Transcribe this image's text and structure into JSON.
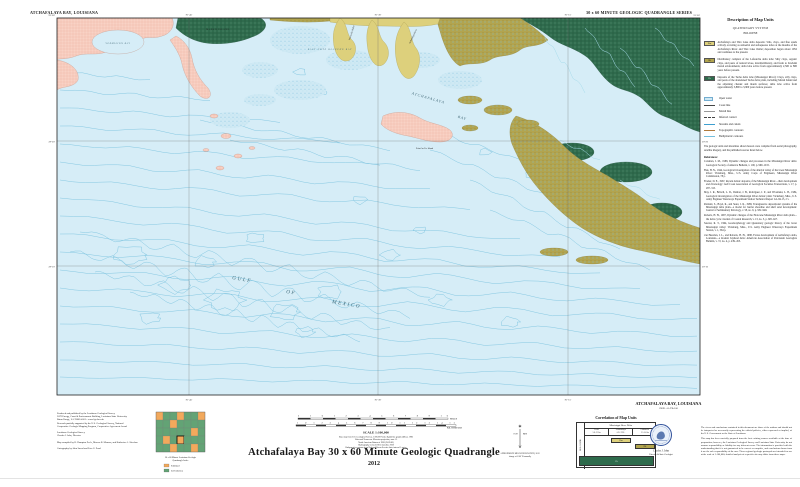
{
  "sheet": {
    "top_left_header": "ATCHAFALAYA BAY, LOUISIANA",
    "top_right_header": "30 x 60 MINUTE  GEOLOGIC QUADRANGLE SERIES",
    "bottom_right_header": "ATCHAFALAYA BAY, LOUISIANA",
    "bottom_right_id": "29091-A1-TB-100"
  },
  "colors": {
    "water": "#d6edf7",
    "bathymetric_contour": "#7cc3df",
    "marsh_pink": "#f7cdbf",
    "teche_green": "#2f6b4d",
    "lafourche_olive": "#b2a44f",
    "atchafalaya_yellow": "#ddd07c"
  },
  "map": {
    "labels": {
      "marsh_island": "MARSH ISLAND",
      "east_cote_blanche_bay": "EAST COTE BLANCHE BAY",
      "vermilion_bay": "VERMILION BAY",
      "atchafalaya_word": "ATCHAFALAYA",
      "bay_word": "BAY",
      "gulf": "GULF",
      "of": "OF",
      "mexico": "MEXICO",
      "point_au_fer": "Point Au Fer Island",
      "wax_lake_outlet": "Wax Lake Outlet",
      "atchafalaya_river": "Atchafalaya River"
    },
    "edge": {
      "corner_nw": "92°00′",
      "corner_ne": "91°00′",
      "top_ticks": [
        "91°45′",
        "91°30′",
        "91°15′"
      ],
      "lat_ticks": [
        "29°20′",
        "29°10′"
      ]
    }
  },
  "description_panel": {
    "title": "Description of Map Units",
    "system": "QUATERNARY SYSTEM",
    "series": "HOLOCENE",
    "units": [
      {
        "code": "Haa",
        "text": "Atchafalaya and Wax Lake delta deposits: Silts, clays, and fine sands actively accreting as subaerial and subaqueous lobes at the mouths of the Atchafalaya River and Wax Lake Outlet; deposition began about 1952 and continues to the present."
      },
      {
        "code": "Hlf",
        "text": "Distributary complex of the Lafourche delta lobe: Silty clays, organic clays, and peats of natural levee, interdistributary, and fresh to brackish marsh environments; delta lobe active from approximately 2,500 to 800 years before present."
      },
      {
        "code": "Ht",
        "text": "Deposits of the Teche delta lobe (Mississippi River): Clays, silty clays, and peats of the abandoned Teche delta plain, including Marsh Island and the adjoining chenier and marsh surfaces; delta lobe active from approximately 5,800 to 3,900 years before present."
      }
    ],
    "symbols": [
      {
        "label": "Open water"
      },
      {
        "label": "Coast line"
      },
      {
        "label": "Marsh line"
      },
      {
        "label": "Inferred contact"
      },
      {
        "label": "Streams and canals"
      },
      {
        "label": "Topographic contours"
      },
      {
        "label": "Bathymetric contours"
      }
    ],
    "note": "The geologic units and shorelines shown hereon were compiled from aerial photography, satellite imagery, and the published sources listed below.",
    "references_title": "References:",
    "references": [
      "Coleman, J. M., 1988, Dynamic changes and processes in the Mississippi River delta: Geological Society of America Bulletin, v. 100, p. 999–1015.",
      "Fisk, H. N., 1944, Geological investigation of the alluvial valley of the lower Mississippi River: Vicksburg, Miss., U.S. Army Corps of Engineers, Mississippi River Commission, 78 p.",
      "Frazier, D. E., 1967, Recent deltaic deposits of the Mississippi River—their development and chronology: Gulf Coast Association of Geological Societies Transactions, v. 17, p. 287–315.",
      "May, J. R., Britsch, L. D., Dunbar, J. B., Rodriguez, J. P., and Wlosinski, L. B., 1984, Geological investigation of the Mississippi River deltaic plain: Vicksburg, Miss., U.S. Army Engineer Waterways Experiment Station Technical Report GL-84-15, 2 v.",
      "Penland, S., Boyd, R., and Suter, J. R., 1988, Transgressive depositional systems of the Mississippi delta plain—a model for barrier shoreline and shelf sand development: Journal of Sedimentary Petrology, v. 58, no. 6, p. 932–949.",
      "Roberts, H. H., 1997, Dynamic changes of the Holocene Mississippi River delta plain—the delta cycle: Journal of Coastal Research, v. 13, no. 3, p. 605–627.",
      "Saucier, R. T., 1994, Geomorphology and Quaternary geologic history of the lower Mississippi valley: Vicksburg, Miss., U.S. Army Engineer Waterways Experiment Station, v. 1, 364 p.",
      "van Heerden, I. L., and Roberts, H. H., 1988, Facies development of Atchafalaya delta, Louisiana—a modern bayhead delta: American Association of Petroleum Geologists Bulletin, v. 72, no. 4, p. 439–453."
    ]
  },
  "credits": {
    "lines": [
      "Produced and published by the Louisiana Geological Survey",
      "3079 Energy, Coast & Environment Building, Louisiana State University",
      "Baton Rouge, LA 70803-4101  •  www.lgs.lsu.edu",
      "Research partially supported by the U.S. Geological Survey, National",
      "Cooperative Geologic Mapping Program, Cooperative Agreement Award",
      "Louisiana Geological Survey",
      "Chacko J. John, Director",
      "Map compiled by R. Hampton Peele, Marcus R. Manson, and Katherine A. Sheehan",
      "Cartography by John Snead and Lisa G. Pond"
    ]
  },
  "index_map": {
    "caption1": "30 x 60 Minute Louisiana Geologic",
    "caption2": "Quadrangle Index",
    "legend": [
      {
        "label": "Published",
        "color": "#f2a95c"
      },
      {
        "label": "In Production",
        "color": "#63a375"
      }
    ]
  },
  "scalebar": {
    "miles_numbers": "2  1  0  1  2  3  4  5  6  7  8  9  10",
    "miles_unit": "MILES",
    "km_numbers": "1 0 1 2 3 4 5 6 7 8 9 10 11 12 13 14 15",
    "km_unit": "KILOMETERS",
    "scale_text": "SCALE 1:100,000",
    "base_lines": [
      "Base map from U.S. Geological Survey, 1:100,000-scale digital line graphs (DLG), 1983",
      "Universal Transverse Mercator projection, zone 15",
      "North American Datum of 1983 (NAD 83)",
      "Hydrography revised 2010; shoreline 2008",
      "Bathymetric contours from National Ocean Service data; interval 1 meter"
    ]
  },
  "title_block": {
    "title": "Atchafalaya Bay 30 x 60 Minute Geologic Quadrangle",
    "year": "2012"
  },
  "declination": {
    "star": "✶",
    "mn": "MN",
    "deg": "0°20′",
    "caption1": "APPROXIMATE MEAN DECLINATION, 2012",
    "caption2": "change of 0°06′ W annually"
  },
  "correlation": {
    "title": "Correlation of Map Units",
    "header": "Mississippi River Delta",
    "row_label": "HOLOCENE",
    "cols": [
      {
        "name": "Teche",
        "sub": "5.8–3.9 ka"
      },
      {
        "name": "Atchafalaya",
        "sub": "A.D. 1952–"
      },
      {
        "name": "Lafourche",
        "sub": "2.5–0.8 ka"
      }
    ],
    "cells": {
      "haa": "Haa",
      "hlf": "Hlf",
      "ht": "Ht"
    }
  },
  "seal": {
    "name": "Chacko J. John",
    "role": "Director & State Geologist"
  },
  "disclaimer": {
    "p1": "The views and conclusions contained in this document are those of the authors and should not be interpreted as necessarily representing the official policies, either expressed or implied, of the U.S. Government or the State of Louisiana.",
    "p2": "This map has been carefully prepared from the best existing sources available at the time of preparation; however, the Louisiana Geological Survey and Louisiana State University do not assume responsibility or liability for any inherent errors. The information is provided with the understanding that it is not guaranteed to be correct or complete, and conclusions drawn from it are the sole responsibility of the user. These regional geologic portrayals are intended for use at the scale of 1:100,000; detailed analysis of a specific site may differ from these maps."
  }
}
